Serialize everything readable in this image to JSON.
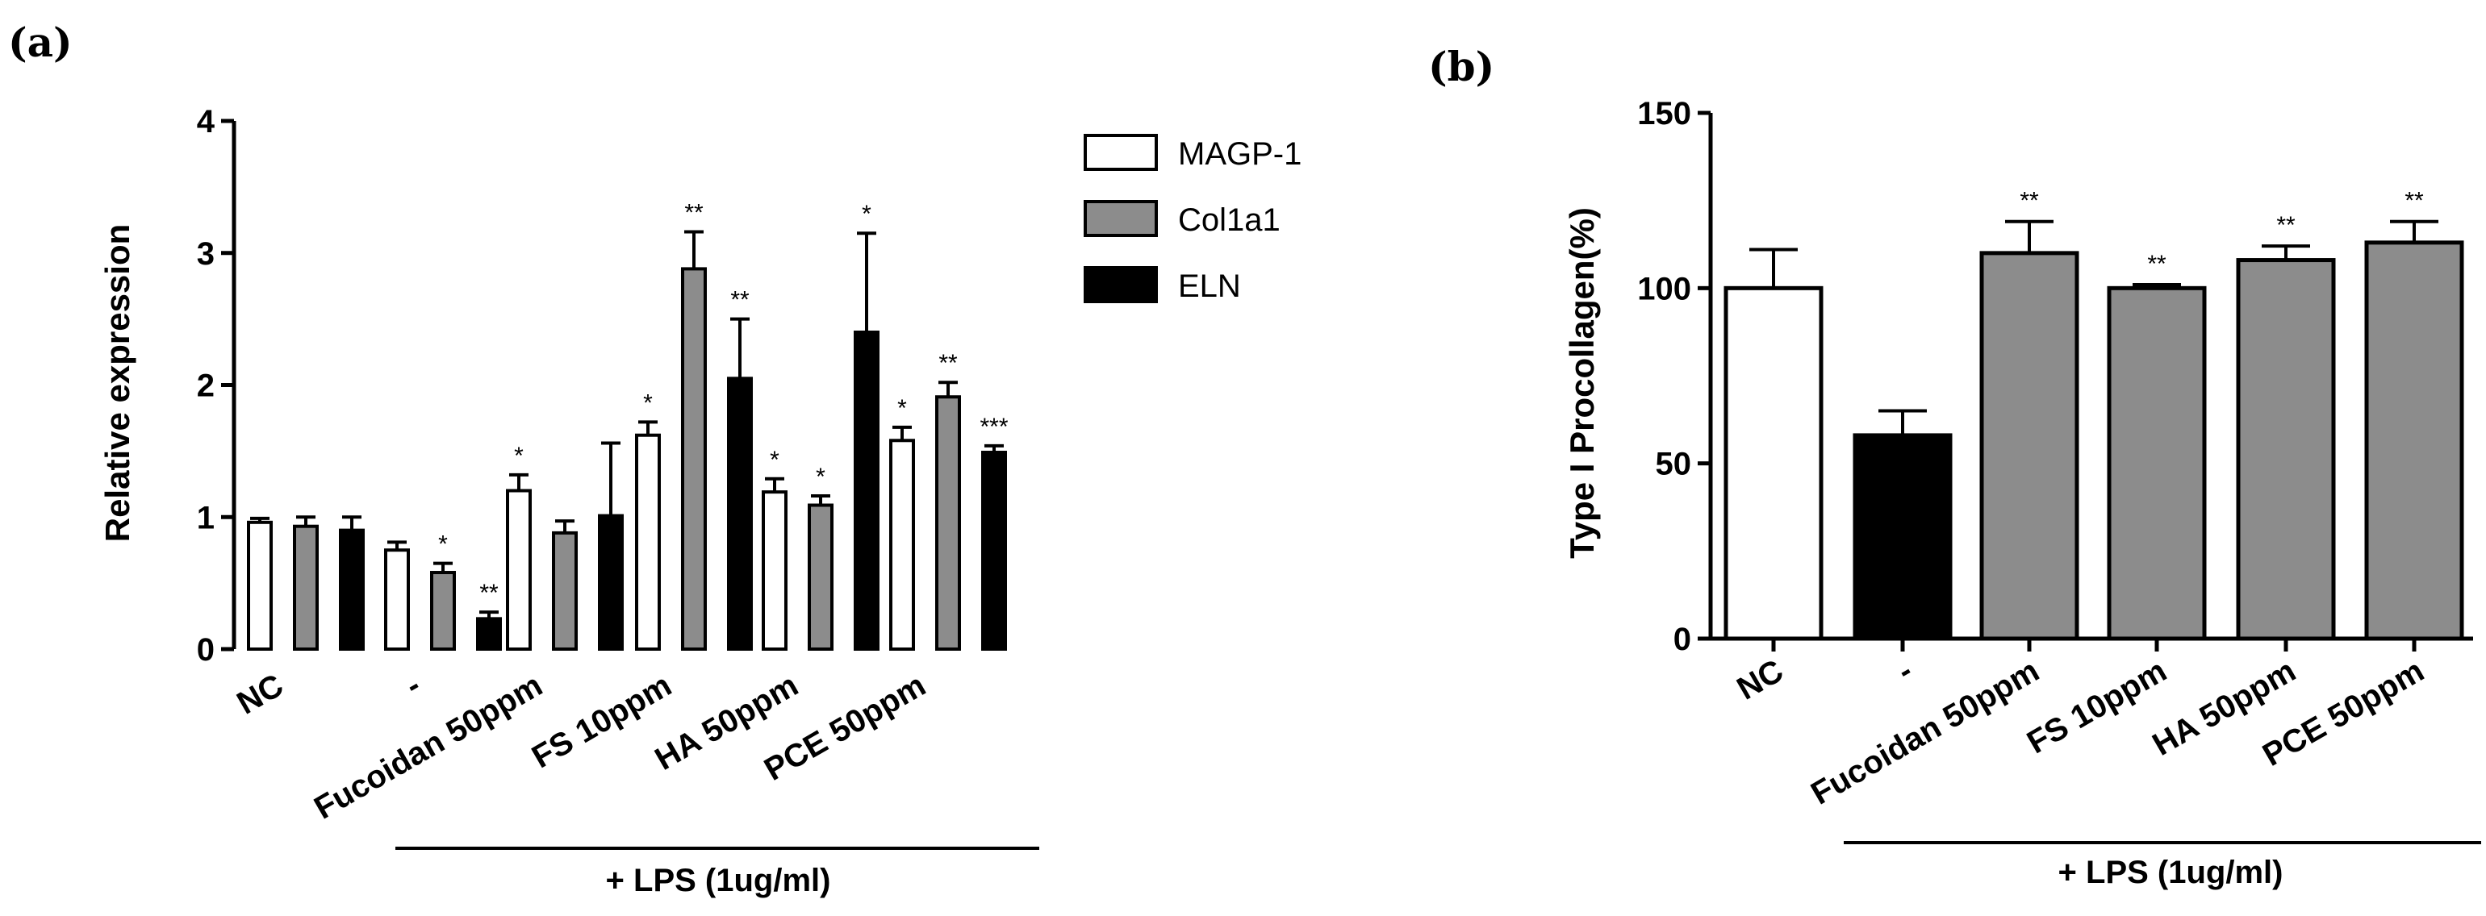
{
  "panel_labels": [
    "(a)",
    "(b)"
  ],
  "chart_data": [
    {
      "type": "bar",
      "ylabel": "Relative expression",
      "ylim": [
        0,
        4
      ],
      "yticks": [
        0,
        1,
        2,
        3,
        4
      ],
      "categories": [
        "NC",
        "-",
        "Fucoidan 50ppm",
        "FS 10ppm",
        "HA 50ppm",
        "PCE 50ppm"
      ],
      "series": [
        {
          "name": "MAGP-1",
          "color": "#ffffff",
          "values": [
            0.96,
            0.75,
            1.2,
            1.62,
            1.19,
            1.58
          ],
          "errors": [
            0.03,
            0.06,
            0.12,
            0.1,
            0.1,
            0.1
          ],
          "sig": [
            "",
            "",
            "*",
            "*",
            "*",
            "*"
          ]
        },
        {
          "name": "Col1a1",
          "color": "#8c8c8c",
          "values": [
            0.93,
            0.58,
            0.88,
            2.88,
            1.09,
            1.91
          ],
          "errors": [
            0.07,
            0.07,
            0.09,
            0.28,
            0.07,
            0.11
          ],
          "sig": [
            "",
            "*",
            "",
            "**",
            "*",
            "**"
          ]
        },
        {
          "name": "ELN",
          "color": "#000000",
          "values": [
            0.9,
            0.23,
            1.01,
            2.05,
            2.4,
            1.49
          ],
          "errors": [
            0.1,
            0.05,
            0.55,
            0.45,
            0.75,
            0.05
          ],
          "sig": [
            "",
            "**",
            "",
            "**",
            "*",
            "***"
          ]
        }
      ],
      "group_label": "+ LPS (1ug/ml)"
    },
    {
      "type": "bar",
      "ylabel": "Type I Procollagen(%)",
      "ylim": [
        0,
        150
      ],
      "yticks": [
        0,
        50,
        100,
        150
      ],
      "categories": [
        "NC",
        "-",
        "Fucoidan 50ppm",
        "FS 10ppm",
        "HA 50ppm",
        "PCE 50ppm"
      ],
      "values": [
        100,
        58,
        110,
        100,
        108,
        113
      ],
      "errors": [
        11,
        7,
        9,
        1,
        4,
        6
      ],
      "colors": [
        "#ffffff",
        "#000000",
        "#8c8c8c",
        "#8c8c8c",
        "#8c8c8c",
        "#8c8c8c"
      ],
      "sig": [
        "",
        "",
        "**",
        "**",
        "**",
        "**"
      ],
      "group_label": "+ LPS (1ug/ml)"
    }
  ]
}
